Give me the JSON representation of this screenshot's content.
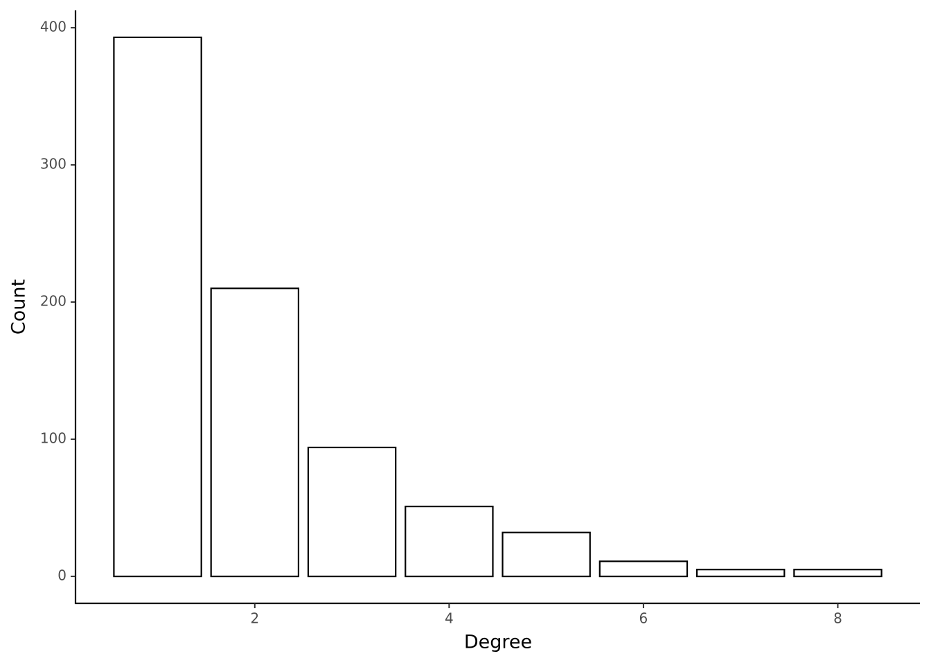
{
  "chart_data": {
    "type": "bar",
    "x_label": "Degree",
    "y_label": "Count",
    "x": [
      1,
      2,
      3,
      4,
      5,
      6,
      7,
      8
    ],
    "values": [
      393,
      210,
      94,
      51,
      32,
      11,
      5,
      5
    ],
    "color": "#ffffff",
    "edge_color": "#000000",
    "xlim": [
      0.155,
      8.845
    ],
    "xticks": [
      2,
      4,
      6,
      8
    ],
    "ylim": [
      -19.65,
      412.65
    ],
    "yticks": [
      0,
      100,
      200,
      300,
      400
    ],
    "grid": false
  }
}
